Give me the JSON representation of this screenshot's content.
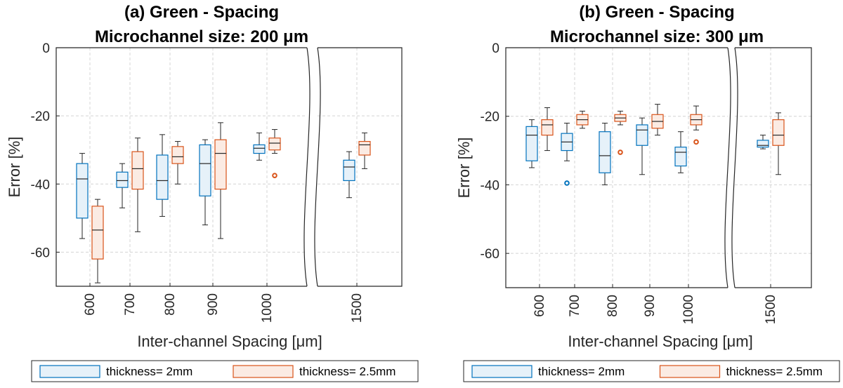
{
  "chart_data": [
    {
      "type": "box",
      "panel": "a",
      "title_line1": "(a) Green - Spacing",
      "title_line2": "Microchannel size: 200 μm",
      "ylabel": "Error [%]",
      "xlabel": "Inter-channel Spacing [μm]",
      "ylim": [
        -70,
        0
      ],
      "yticks": [
        0,
        -20,
        -40,
        -60
      ],
      "ytick_labels": [
        "0",
        "-20",
        "-40",
        "-60"
      ],
      "grid": true,
      "axis_break": true,
      "categories": [
        "600",
        "700",
        "800",
        "900",
        "1000",
        "1500"
      ],
      "series": [
        {
          "name": "thickness= 2mm",
          "color": "#0072BD",
          "fill": "#e6f1f9",
          "boxes": [
            {
              "category": "600",
              "whisker_low": -56,
              "q1": -50,
              "median": -38.5,
              "q3": -34,
              "whisker_high": -31,
              "outliers": []
            },
            {
              "category": "700",
              "whisker_low": -47,
              "q1": -41,
              "median": -39,
              "q3": -36.5,
              "whisker_high": -34,
              "outliers": []
            },
            {
              "category": "800",
              "whisker_low": -49.5,
              "q1": -44.5,
              "median": -39,
              "q3": -31.5,
              "whisker_high": -25.5,
              "outliers": []
            },
            {
              "category": "900",
              "whisker_low": -52,
              "q1": -43.5,
              "median": -34,
              "q3": -28.5,
              "whisker_high": -27,
              "outliers": []
            },
            {
              "category": "1000",
              "whisker_low": -33,
              "q1": -31,
              "median": -29.5,
              "q3": -28.5,
              "whisker_high": -25,
              "outliers": []
            },
            {
              "category": "1500",
              "whisker_low": -44,
              "q1": -39,
              "median": -35,
              "q3": -33,
              "whisker_high": -30.5,
              "outliers": []
            }
          ]
        },
        {
          "name": "thickness= 2.5mm",
          "color": "#D95319",
          "fill": "#fbebe3",
          "boxes": [
            {
              "category": "600",
              "whisker_low": -69,
              "q1": -62,
              "median": -53.5,
              "q3": -46.5,
              "whisker_high": -44.5,
              "outliers": []
            },
            {
              "category": "700",
              "whisker_low": -54,
              "q1": -41.5,
              "median": -35.5,
              "q3": -30.5,
              "whisker_high": -26.5,
              "outliers": []
            },
            {
              "category": "800",
              "whisker_low": -40,
              "q1": -34,
              "median": -32,
              "q3": -29,
              "whisker_high": -27.5,
              "outliers": []
            },
            {
              "category": "900",
              "whisker_low": -56,
              "q1": -41.5,
              "median": -31,
              "q3": -27,
              "whisker_high": -22,
              "outliers": []
            },
            {
              "category": "1000",
              "whisker_low": -31,
              "q1": -30,
              "median": -28,
              "q3": -26.5,
              "whisker_high": -24,
              "outliers": [
                -37.5
              ]
            },
            {
              "category": "1500",
              "whisker_low": -35.5,
              "q1": -31.5,
              "median": -28.5,
              "q3": -27.5,
              "whisker_high": -25,
              "outliers": []
            }
          ]
        }
      ]
    },
    {
      "type": "box",
      "panel": "b",
      "title_line1": "(b) Green - Spacing",
      "title_line2": "Microchannel size: 300 μm",
      "ylabel": "Error [%]",
      "xlabel": "Inter-channel Spacing [μm]",
      "ylim": [
        -70,
        0
      ],
      "yticks": [
        0,
        -20,
        -40,
        -60
      ],
      "ytick_labels": [
        "0",
        "-20",
        "-40",
        "-60"
      ],
      "grid": true,
      "axis_break": true,
      "categories": [
        "600",
        "700",
        "800",
        "900",
        "1000",
        "1500"
      ],
      "series": [
        {
          "name": "thickness= 2mm",
          "color": "#0072BD",
          "fill": "#e6f1f9",
          "boxes": [
            {
              "category": "600",
              "whisker_low": -35,
              "q1": -33,
              "median": -25.5,
              "q3": -23,
              "whisker_high": -21,
              "outliers": []
            },
            {
              "category": "700",
              "whisker_low": -33,
              "q1": -30,
              "median": -27.5,
              "q3": -25,
              "whisker_high": -22,
              "outliers": [
                -39.5
              ]
            },
            {
              "category": "800",
              "whisker_low": -40,
              "q1": -36.5,
              "median": -31.5,
              "q3": -24.5,
              "whisker_high": -22,
              "outliers": []
            },
            {
              "category": "900",
              "whisker_low": -37,
              "q1": -28.5,
              "median": -24,
              "q3": -22.5,
              "whisker_high": -20.5,
              "outliers": []
            },
            {
              "category": "1000",
              "whisker_low": -36.5,
              "q1": -34.5,
              "median": -30.5,
              "q3": -29,
              "whisker_high": -24.5,
              "outliers": []
            },
            {
              "category": "1500",
              "whisker_low": -29.5,
              "q1": -29,
              "median": -28.5,
              "q3": -27,
              "whisker_high": -25.5,
              "outliers": []
            }
          ]
        },
        {
          "name": "thickness= 2.5mm",
          "color": "#D95319",
          "fill": "#fbebe3",
          "boxes": [
            {
              "category": "600",
              "whisker_low": -30,
              "q1": -25.5,
              "median": -22.5,
              "q3": -21,
              "whisker_high": -17.5,
              "outliers": []
            },
            {
              "category": "700",
              "whisker_low": -23.5,
              "q1": -22.5,
              "median": -21,
              "q3": -19.5,
              "whisker_high": -18.5,
              "outliers": []
            },
            {
              "category": "800",
              "whisker_low": -22.5,
              "q1": -21.5,
              "median": -20.5,
              "q3": -19.5,
              "whisker_high": -18.5,
              "outliers": [
                -30.5
              ]
            },
            {
              "category": "900",
              "whisker_low": -25.5,
              "q1": -23.5,
              "median": -21.5,
              "q3": -19.5,
              "whisker_high": -16.5,
              "outliers": []
            },
            {
              "category": "1000",
              "whisker_low": -24,
              "q1": -22.5,
              "median": -21,
              "q3": -19.5,
              "whisker_high": -17,
              "outliers": [
                -27.5
              ]
            },
            {
              "category": "1500",
              "whisker_low": -37,
              "q1": -28.5,
              "median": -25.5,
              "q3": -21,
              "whisker_high": -19,
              "outliers": []
            }
          ]
        }
      ]
    }
  ]
}
